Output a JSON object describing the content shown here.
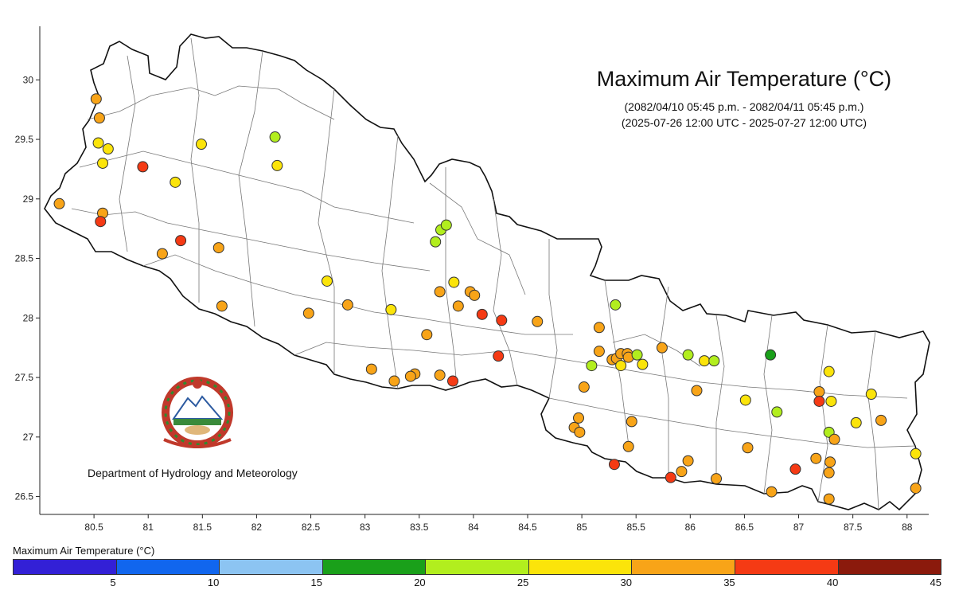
{
  "title": "Maximum Air Temperature (°C)",
  "subtitle_nepali": "(2082/04/10 05:45 p.m. - 2082/04/11 05:45 p.m.)",
  "subtitle_utc": "(2025-07-26 12:00 UTC - 2025-07-27 12:00 UTC)",
  "organization": "Department of Hydrology and Meteorology",
  "legend": {
    "title": "Maximum Air Temperature (°C)",
    "bins": [
      {
        "min": 0,
        "max": 5,
        "color": "#3320d6"
      },
      {
        "min": 5,
        "max": 10,
        "color": "#1166ee"
      },
      {
        "min": 10,
        "max": 15,
        "color": "#8cc4f2"
      },
      {
        "min": 15,
        "max": 20,
        "color": "#1aa01a"
      },
      {
        "min": 20,
        "max": 25,
        "color": "#b2ee1e"
      },
      {
        "min": 25,
        "max": 30,
        "color": "#fbe40a"
      },
      {
        "min": 30,
        "max": 35,
        "color": "#f8a418"
      },
      {
        "min": 35,
        "max": 40,
        "color": "#f53a14"
      },
      {
        "min": 40,
        "max": 45,
        "color": "#8b1a0c"
      }
    ],
    "tick_labels": [
      "5",
      "10",
      "15",
      "20",
      "25",
      "30",
      "35",
      "40",
      "45"
    ]
  },
  "axes": {
    "x_range": [
      80.0,
      88.2
    ],
    "y_range": [
      26.35,
      30.45
    ],
    "x_ticks": [
      80.5,
      81,
      81.5,
      82,
      82.5,
      83,
      83.5,
      84,
      84.5,
      85,
      85.5,
      86,
      86.5,
      87,
      87.5,
      88
    ],
    "x_tick_labels": [
      "80.5",
      "81",
      "81.5",
      "82",
      "82.5",
      "83",
      "83.5",
      "84",
      "84.5",
      "85",
      "85.5",
      "86",
      "86.5",
      "87",
      "87.5",
      "88"
    ],
    "y_ticks": [
      26.5,
      27,
      27.5,
      28,
      28.5,
      29,
      29.5,
      30
    ],
    "y_tick_labels": [
      "26.5",
      "27",
      "27.5",
      "28",
      "28.5",
      "29",
      "29.5",
      "30"
    ]
  },
  "chart_data": {
    "type": "scatter",
    "title": "Maximum Air Temperature (°C)",
    "xlim": [
      80.0,
      88.2
    ],
    "ylim": [
      26.35,
      30.45
    ],
    "points": [
      {
        "lon": 80.52,
        "lat": 29.84,
        "class": "30-35"
      },
      {
        "lon": 80.55,
        "lat": 29.68,
        "class": "30-35"
      },
      {
        "lon": 80.54,
        "lat": 29.47,
        "class": "25-30"
      },
      {
        "lon": 80.63,
        "lat": 29.42,
        "class": "25-30"
      },
      {
        "lon": 80.58,
        "lat": 29.3,
        "class": "25-30"
      },
      {
        "lon": 80.95,
        "lat": 29.27,
        "class": "35-40"
      },
      {
        "lon": 81.25,
        "lat": 29.14,
        "class": "25-30"
      },
      {
        "lon": 81.49,
        "lat": 29.46,
        "class": "25-30"
      },
      {
        "lon": 82.17,
        "lat": 29.52,
        "class": "20-25"
      },
      {
        "lon": 82.19,
        "lat": 29.28,
        "class": "25-30"
      },
      {
        "lon": 80.18,
        "lat": 28.96,
        "class": "30-35"
      },
      {
        "lon": 80.58,
        "lat": 28.88,
        "class": "30-35"
      },
      {
        "lon": 80.56,
        "lat": 28.81,
        "class": "35-40"
      },
      {
        "lon": 81.3,
        "lat": 28.65,
        "class": "35-40"
      },
      {
        "lon": 81.13,
        "lat": 28.54,
        "class": "30-35"
      },
      {
        "lon": 81.65,
        "lat": 28.59,
        "class": "30-35"
      },
      {
        "lon": 81.68,
        "lat": 28.1,
        "class": "30-35"
      },
      {
        "lon": 82.48,
        "lat": 28.04,
        "class": "30-35"
      },
      {
        "lon": 82.65,
        "lat": 28.31,
        "class": "25-30"
      },
      {
        "lon": 82.84,
        "lat": 28.11,
        "class": "30-35"
      },
      {
        "lon": 83.24,
        "lat": 28.07,
        "class": "25-30"
      },
      {
        "lon": 83.57,
        "lat": 27.86,
        "class": "30-35"
      },
      {
        "lon": 83.06,
        "lat": 27.57,
        "class": "30-35"
      },
      {
        "lon": 83.27,
        "lat": 27.47,
        "class": "30-35"
      },
      {
        "lon": 83.46,
        "lat": 27.53,
        "class": "30-35"
      },
      {
        "lon": 83.42,
        "lat": 27.51,
        "class": "30-35"
      },
      {
        "lon": 83.69,
        "lat": 27.52,
        "class": "30-35"
      },
      {
        "lon": 83.81,
        "lat": 27.47,
        "class": "35-40"
      },
      {
        "lon": 83.65,
        "lat": 28.64,
        "class": "20-25"
      },
      {
        "lon": 83.7,
        "lat": 28.74,
        "class": "20-25"
      },
      {
        "lon": 83.75,
        "lat": 28.78,
        "class": "20-25"
      },
      {
        "lon": 83.82,
        "lat": 28.3,
        "class": "25-30"
      },
      {
        "lon": 83.69,
        "lat": 28.22,
        "class": "30-35"
      },
      {
        "lon": 83.86,
        "lat": 28.1,
        "class": "30-35"
      },
      {
        "lon": 83.97,
        "lat": 28.22,
        "class": "30-35"
      },
      {
        "lon": 84.01,
        "lat": 28.19,
        "class": "30-35"
      },
      {
        "lon": 84.08,
        "lat": 28.03,
        "class": "35-40"
      },
      {
        "lon": 84.26,
        "lat": 27.98,
        "class": "35-40"
      },
      {
        "lon": 84.59,
        "lat": 27.97,
        "class": "30-35"
      },
      {
        "lon": 84.23,
        "lat": 27.68,
        "class": "35-40"
      },
      {
        "lon": 85.31,
        "lat": 28.11,
        "class": "20-25"
      },
      {
        "lon": 85.16,
        "lat": 27.92,
        "class": "30-35"
      },
      {
        "lon": 85.16,
        "lat": 27.72,
        "class": "30-35"
      },
      {
        "lon": 85.09,
        "lat": 27.6,
        "class": "20-25"
      },
      {
        "lon": 85.28,
        "lat": 27.65,
        "class": "30-35"
      },
      {
        "lon": 85.32,
        "lat": 27.66,
        "class": "30-35"
      },
      {
        "lon": 85.36,
        "lat": 27.7,
        "class": "30-35"
      },
      {
        "lon": 85.36,
        "lat": 27.6,
        "class": "25-30"
      },
      {
        "lon": 85.42,
        "lat": 27.7,
        "class": "30-35"
      },
      {
        "lon": 85.43,
        "lat": 27.67,
        "class": "30-35"
      },
      {
        "lon": 85.51,
        "lat": 27.69,
        "class": "20-25"
      },
      {
        "lon": 85.56,
        "lat": 27.61,
        "class": "25-30"
      },
      {
        "lon": 85.74,
        "lat": 27.75,
        "class": "30-35"
      },
      {
        "lon": 85.98,
        "lat": 27.69,
        "class": "20-25"
      },
      {
        "lon": 86.13,
        "lat": 27.64,
        "class": "25-30"
      },
      {
        "lon": 86.22,
        "lat": 27.64,
        "class": "20-25"
      },
      {
        "lon": 86.06,
        "lat": 27.39,
        "class": "30-35"
      },
      {
        "lon": 86.74,
        "lat": 27.69,
        "class": "15-20"
      },
      {
        "lon": 86.51,
        "lat": 27.31,
        "class": "25-30"
      },
      {
        "lon": 86.8,
        "lat": 27.21,
        "class": "20-25"
      },
      {
        "lon": 85.02,
        "lat": 27.42,
        "class": "30-35"
      },
      {
        "lon": 84.97,
        "lat": 27.16,
        "class": "30-35"
      },
      {
        "lon": 84.93,
        "lat": 27.08,
        "class": "30-35"
      },
      {
        "lon": 84.98,
        "lat": 27.04,
        "class": "30-35"
      },
      {
        "lon": 85.46,
        "lat": 27.13,
        "class": "30-35"
      },
      {
        "lon": 85.43,
        "lat": 26.92,
        "class": "30-35"
      },
      {
        "lon": 85.3,
        "lat": 26.77,
        "class": "35-40"
      },
      {
        "lon": 85.82,
        "lat": 26.66,
        "class": "35-40"
      },
      {
        "lon": 85.92,
        "lat": 26.71,
        "class": "30-35"
      },
      {
        "lon": 85.98,
        "lat": 26.8,
        "class": "30-35"
      },
      {
        "lon": 86.24,
        "lat": 26.65,
        "class": "30-35"
      },
      {
        "lon": 86.53,
        "lat": 26.91,
        "class": "30-35"
      },
      {
        "lon": 86.75,
        "lat": 26.54,
        "class": "30-35"
      },
      {
        "lon": 86.97,
        "lat": 26.73,
        "class": "35-40"
      },
      {
        "lon": 87.19,
        "lat": 27.38,
        "class": "30-35"
      },
      {
        "lon": 87.19,
        "lat": 27.3,
        "class": "35-40"
      },
      {
        "lon": 87.28,
        "lat": 27.55,
        "class": "25-30"
      },
      {
        "lon": 87.3,
        "lat": 27.3,
        "class": "25-30"
      },
      {
        "lon": 87.28,
        "lat": 27.04,
        "class": "20-25"
      },
      {
        "lon": 87.33,
        "lat": 26.98,
        "class": "30-35"
      },
      {
        "lon": 87.16,
        "lat": 26.82,
        "class": "30-35"
      },
      {
        "lon": 87.29,
        "lat": 26.79,
        "class": "30-35"
      },
      {
        "lon": 87.28,
        "lat": 26.7,
        "class": "30-35"
      },
      {
        "lon": 87.28,
        "lat": 26.48,
        "class": "30-35"
      },
      {
        "lon": 87.53,
        "lat": 27.12,
        "class": "25-30"
      },
      {
        "lon": 87.67,
        "lat": 27.36,
        "class": "25-30"
      },
      {
        "lon": 87.76,
        "lat": 27.14,
        "class": "30-35"
      },
      {
        "lon": 88.08,
        "lat": 26.86,
        "class": "25-30"
      },
      {
        "lon": 88.08,
        "lat": 26.57,
        "class": "30-35"
      }
    ]
  }
}
